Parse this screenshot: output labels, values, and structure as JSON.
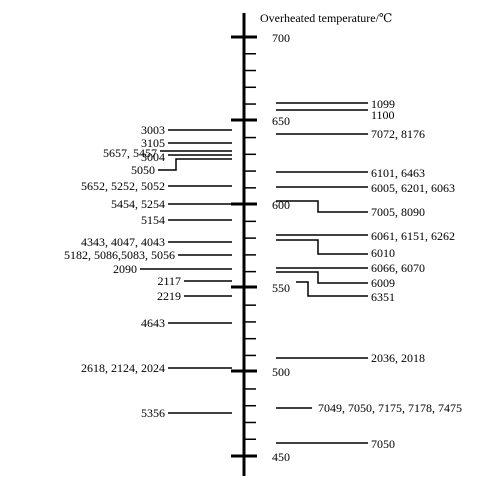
{
  "axis": {
    "title": "Overheated temperature/℃",
    "min": 450,
    "max": 700,
    "major_ticks": [
      700,
      650,
      600,
      550,
      500,
      450
    ],
    "minor_step": 10
  },
  "right_groups": [
    {
      "temp": 690,
      "label": "1099"
    },
    {
      "temp": 655,
      "label": "1100"
    },
    {
      "temp": 644,
      "label": "7072, 8176"
    },
    {
      "temp": 621,
      "label": "6101, 6463"
    },
    {
      "temp": 609,
      "label": "6005, 6201, 6063"
    },
    {
      "temp": 599,
      "label": "7005, 8090"
    },
    {
      "temp": 583,
      "label": "6061, 6151, 6262"
    },
    {
      "temp": 571,
      "label": "6010"
    },
    {
      "temp": 561,
      "label": "6066, 6070"
    },
    {
      "temp": 554,
      "label": "6009"
    },
    {
      "temp": 543,
      "label": "6351"
    },
    {
      "temp": 507,
      "label": "2036, 2018"
    },
    {
      "temp": 476,
      "label": "7049, 7050, 7175, 7178, 7475"
    },
    {
      "temp": 457,
      "label": "7050"
    }
  ],
  "left_groups": [
    {
      "temp": 644,
      "label": "3003"
    },
    {
      "temp": 637,
      "label": "3105"
    },
    {
      "temp": 632,
      "label": "5657, 5457"
    },
    {
      "temp": 626,
      "label": "3004"
    },
    {
      "temp": 621,
      "label": "5050"
    },
    {
      "temp": 609,
      "label": "5652, 5252, 5052"
    },
    {
      "temp": 596,
      "label": "5454, 5254"
    },
    {
      "temp": 587,
      "label": "5154"
    },
    {
      "temp": 573,
      "label": "4343, 4047, 4043"
    },
    {
      "temp": 564,
      "label": "5182, 5086,5083, 5056"
    },
    {
      "temp": 552,
      "label": "2090"
    },
    {
      "temp": 545,
      "label": "2117"
    },
    {
      "temp": 538,
      "label": "2219"
    },
    {
      "temp": 518,
      "label": "4643"
    },
    {
      "temp": 500,
      "label": "2618, 2124, 2024"
    },
    {
      "temp": 476,
      "label": "5356"
    }
  ]
}
